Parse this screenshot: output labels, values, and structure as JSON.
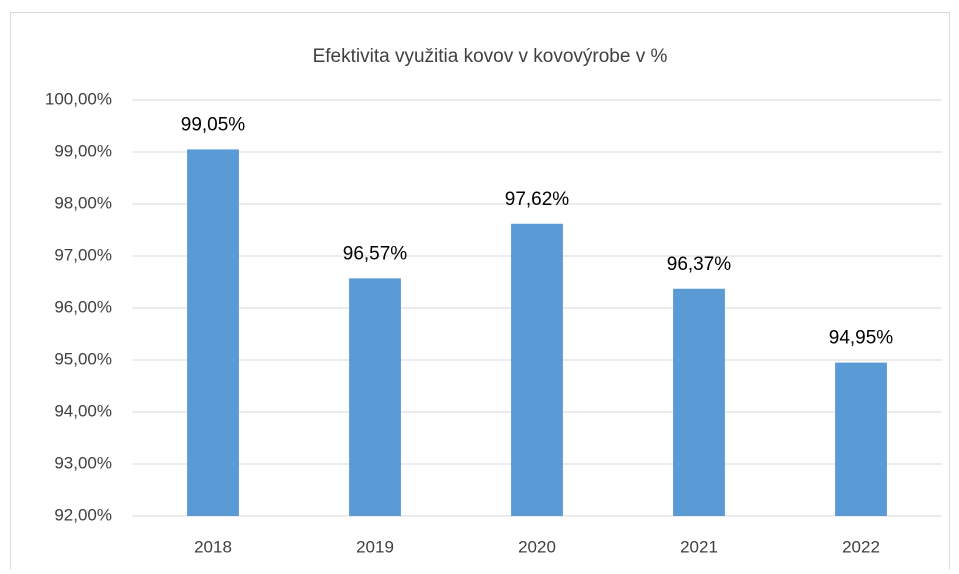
{
  "chart_data": {
    "type": "bar",
    "title": "Efektivita využitia kovov v kovovýrobe v %",
    "categories": [
      "2018",
      "2019",
      "2020",
      "2021",
      "2022"
    ],
    "values": [
      99.05,
      96.57,
      97.62,
      96.37,
      94.95
    ],
    "value_labels": [
      "99,05%",
      "96,57%",
      "97,62%",
      "96,37%",
      "94,95%"
    ],
    "color": "#5b9bd5",
    "ylim": [
      92,
      100
    ],
    "yticks": [
      {
        "value": 92,
        "label": "92,00%"
      },
      {
        "value": 93,
        "label": "93,00%"
      },
      {
        "value": 94,
        "label": "94,00%"
      },
      {
        "value": 95,
        "label": "95,00%"
      },
      {
        "value": 96,
        "label": "96,00%"
      },
      {
        "value": 97,
        "label": "97,00%"
      },
      {
        "value": 98,
        "label": "98,00%"
      },
      {
        "value": 99,
        "label": "99,00%"
      },
      {
        "value": 100,
        "label": "100,00%"
      }
    ],
    "grid": true
  }
}
